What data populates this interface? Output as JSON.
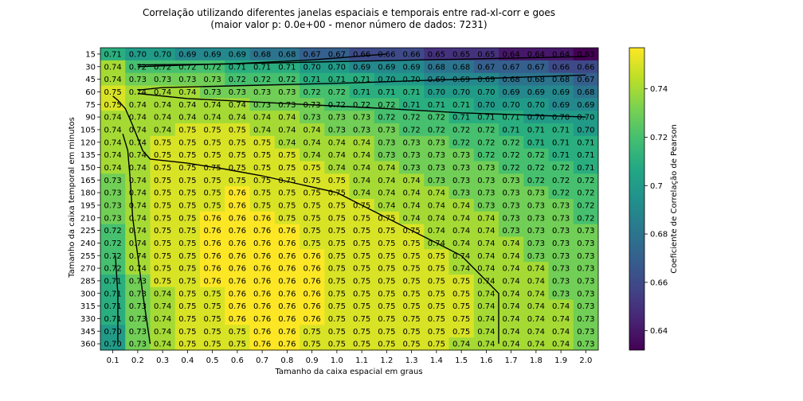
{
  "chart_data": {
    "type": "heatmap",
    "title": "Correlação utilizando diferentes janelas espaciais e temporais entre rad-xl-corr e goes",
    "subtitle": "(maior valor p: 0.0e+00 - menor número de dados: 7231)",
    "xlabel": "Tamanho da caixa espacial em graus",
    "ylabel": "Tamanho da caixa temporal em minutos",
    "colorbar_label": "Coeficiente de Correlação de Pearson",
    "colormap": "viridis",
    "vmin": 0.632,
    "vmax": 0.757,
    "colorbar_ticks": [
      "0.64",
      "0.66",
      "0.68",
      "0.7",
      "0.72",
      "0.74"
    ],
    "colorbar_tick_values": [
      0.64,
      0.66,
      0.68,
      0.7,
      0.72,
      0.74
    ],
    "x_ticks": [
      "0.1",
      "0.2",
      "0.3",
      "0.4",
      "0.5",
      "0.6",
      "0.7",
      "0.8",
      "0.9",
      "1.0",
      "1.1",
      "1.2",
      "1.3",
      "1.4",
      "1.5",
      "1.6",
      "1.7",
      "1.8",
      "1.9",
      "2.0"
    ],
    "y_ticks": [
      "15",
      "30",
      "45",
      "60",
      "75",
      "90",
      "105",
      "120",
      "135",
      "150",
      "165",
      "180",
      "195",
      "210",
      "225",
      "240",
      "255",
      "270",
      "285",
      "300",
      "315",
      "330",
      "345",
      "360"
    ],
    "values": [
      [
        0.71,
        0.7,
        0.7,
        0.69,
        0.69,
        0.69,
        0.68,
        0.68,
        0.67,
        0.67,
        0.66,
        0.66,
        0.66,
        0.65,
        0.65,
        0.65,
        0.64,
        0.64,
        0.64,
        0.63
      ],
      [
        0.74,
        0.72,
        0.72,
        0.72,
        0.72,
        0.71,
        0.71,
        0.71,
        0.7,
        0.7,
        0.69,
        0.69,
        0.69,
        0.68,
        0.68,
        0.67,
        0.67,
        0.67,
        0.66,
        0.66
      ],
      [
        0.74,
        0.73,
        0.73,
        0.73,
        0.73,
        0.72,
        0.72,
        0.72,
        0.71,
        0.71,
        0.71,
        0.7,
        0.7,
        0.69,
        0.69,
        0.69,
        0.68,
        0.68,
        0.68,
        0.67
      ],
      [
        0.75,
        0.74,
        0.74,
        0.74,
        0.73,
        0.73,
        0.73,
        0.73,
        0.72,
        0.72,
        0.71,
        0.71,
        0.71,
        0.7,
        0.7,
        0.7,
        0.69,
        0.69,
        0.69,
        0.68
      ],
      [
        0.75,
        0.74,
        0.74,
        0.74,
        0.74,
        0.74,
        0.73,
        0.73,
        0.73,
        0.72,
        0.72,
        0.72,
        0.71,
        0.71,
        0.71,
        0.7,
        0.7,
        0.7,
        0.69,
        0.69
      ],
      [
        0.74,
        0.74,
        0.74,
        0.74,
        0.74,
        0.74,
        0.74,
        0.74,
        0.73,
        0.73,
        0.73,
        0.72,
        0.72,
        0.72,
        0.71,
        0.71,
        0.71,
        0.7,
        0.7,
        0.7
      ],
      [
        0.74,
        0.74,
        0.74,
        0.75,
        0.75,
        0.75,
        0.74,
        0.74,
        0.74,
        0.73,
        0.73,
        0.73,
        0.72,
        0.72,
        0.72,
        0.72,
        0.71,
        0.71,
        0.71,
        0.7
      ],
      [
        0.74,
        0.74,
        0.75,
        0.75,
        0.75,
        0.75,
        0.75,
        0.74,
        0.74,
        0.74,
        0.74,
        0.73,
        0.73,
        0.73,
        0.72,
        0.72,
        0.72,
        0.71,
        0.71,
        0.71
      ],
      [
        0.74,
        0.74,
        0.75,
        0.75,
        0.75,
        0.75,
        0.75,
        0.75,
        0.74,
        0.74,
        0.74,
        0.73,
        0.73,
        0.73,
        0.73,
        0.72,
        0.72,
        0.72,
        0.71,
        0.71
      ],
      [
        0.74,
        0.74,
        0.75,
        0.75,
        0.75,
        0.75,
        0.75,
        0.75,
        0.75,
        0.74,
        0.74,
        0.74,
        0.73,
        0.73,
        0.73,
        0.73,
        0.72,
        0.72,
        0.72,
        0.71
      ],
      [
        0.73,
        0.74,
        0.75,
        0.75,
        0.75,
        0.75,
        0.75,
        0.75,
        0.75,
        0.75,
        0.74,
        0.74,
        0.74,
        0.73,
        0.73,
        0.73,
        0.73,
        0.72,
        0.72,
        0.72
      ],
      [
        0.73,
        0.74,
        0.75,
        0.75,
        0.75,
        0.76,
        0.75,
        0.75,
        0.75,
        0.75,
        0.74,
        0.74,
        0.74,
        0.74,
        0.73,
        0.73,
        0.73,
        0.73,
        0.72,
        0.72
      ],
      [
        0.73,
        0.74,
        0.75,
        0.75,
        0.75,
        0.76,
        0.75,
        0.75,
        0.75,
        0.75,
        0.75,
        0.74,
        0.74,
        0.74,
        0.74,
        0.73,
        0.73,
        0.73,
        0.73,
        0.72
      ],
      [
        0.73,
        0.74,
        0.75,
        0.75,
        0.76,
        0.76,
        0.76,
        0.75,
        0.75,
        0.75,
        0.75,
        0.75,
        0.74,
        0.74,
        0.74,
        0.74,
        0.73,
        0.73,
        0.73,
        0.72
      ],
      [
        0.72,
        0.74,
        0.75,
        0.75,
        0.76,
        0.76,
        0.76,
        0.76,
        0.75,
        0.75,
        0.75,
        0.75,
        0.75,
        0.74,
        0.74,
        0.74,
        0.73,
        0.73,
        0.73,
        0.73
      ],
      [
        0.72,
        0.74,
        0.75,
        0.75,
        0.76,
        0.76,
        0.76,
        0.76,
        0.75,
        0.75,
        0.75,
        0.75,
        0.75,
        0.74,
        0.74,
        0.74,
        0.74,
        0.73,
        0.73,
        0.73
      ],
      [
        0.72,
        0.74,
        0.75,
        0.75,
        0.76,
        0.76,
        0.76,
        0.76,
        0.76,
        0.75,
        0.75,
        0.75,
        0.75,
        0.75,
        0.74,
        0.74,
        0.74,
        0.73,
        0.73,
        0.73
      ],
      [
        0.72,
        0.74,
        0.75,
        0.75,
        0.76,
        0.76,
        0.76,
        0.76,
        0.76,
        0.75,
        0.75,
        0.75,
        0.75,
        0.75,
        0.74,
        0.74,
        0.74,
        0.74,
        0.73,
        0.73
      ],
      [
        0.71,
        0.73,
        0.75,
        0.75,
        0.76,
        0.76,
        0.76,
        0.76,
        0.76,
        0.75,
        0.75,
        0.75,
        0.75,
        0.75,
        0.75,
        0.74,
        0.74,
        0.74,
        0.73,
        0.73
      ],
      [
        0.71,
        0.73,
        0.74,
        0.75,
        0.75,
        0.76,
        0.76,
        0.76,
        0.76,
        0.75,
        0.75,
        0.75,
        0.75,
        0.75,
        0.75,
        0.74,
        0.74,
        0.74,
        0.73,
        0.73
      ],
      [
        0.71,
        0.73,
        0.74,
        0.75,
        0.75,
        0.76,
        0.76,
        0.76,
        0.76,
        0.75,
        0.75,
        0.75,
        0.75,
        0.75,
        0.75,
        0.74,
        0.74,
        0.74,
        0.74,
        0.73
      ],
      [
        0.71,
        0.73,
        0.74,
        0.75,
        0.75,
        0.76,
        0.76,
        0.76,
        0.76,
        0.75,
        0.75,
        0.75,
        0.75,
        0.75,
        0.75,
        0.74,
        0.74,
        0.74,
        0.74,
        0.73
      ],
      [
        0.7,
        0.73,
        0.74,
        0.75,
        0.75,
        0.75,
        0.76,
        0.76,
        0.75,
        0.75,
        0.75,
        0.75,
        0.75,
        0.75,
        0.75,
        0.74,
        0.74,
        0.74,
        0.74,
        0.73
      ],
      [
        0.7,
        0.73,
        0.74,
        0.75,
        0.75,
        0.75,
        0.76,
        0.76,
        0.75,
        0.75,
        0.75,
        0.75,
        0.75,
        0.75,
        0.74,
        0.74,
        0.74,
        0.74,
        0.74,
        0.73
      ]
    ],
    "contours": [
      [
        [
          1.2,
          15
        ],
        [
          0.9,
          22
        ],
        [
          0.55,
          27
        ],
        [
          0.2,
          28
        ]
      ],
      [
        [
          2.0,
          18
        ],
        [
          1.5,
          21
        ],
        [
          1.0,
          24
        ],
        [
          0.5,
          27
        ],
        [
          0.2,
          30
        ]
      ],
      [
        [
          2.0,
          40
        ],
        [
          1.6,
          44
        ],
        [
          1.1,
          49
        ],
        [
          0.7,
          52
        ],
        [
          0.3,
          55
        ],
        [
          0.2,
          58
        ]
      ],
      [
        [
          2.0,
          90
        ],
        [
          1.8,
          88
        ],
        [
          1.5,
          85
        ],
        [
          1.2,
          80
        ],
        [
          0.8,
          74
        ],
        [
          0.4,
          68
        ],
        [
          0.2,
          62
        ]
      ],
      [
        [
          1.65,
          360
        ],
        [
          1.65,
          300
        ],
        [
          1.6,
          285
        ],
        [
          1.55,
          270
        ],
        [
          1.5,
          255
        ],
        [
          1.4,
          240
        ],
        [
          1.3,
          225
        ],
        [
          1.2,
          210
        ],
        [
          1.1,
          195
        ],
        [
          1.0,
          180
        ],
        [
          0.85,
          170
        ],
        [
          0.7,
          160
        ],
        [
          0.55,
          152
        ],
        [
          0.4,
          145
        ],
        [
          0.25,
          140
        ],
        [
          0.22,
          130
        ],
        [
          0.2,
          115
        ],
        [
          0.18,
          100
        ],
        [
          0.15,
          80
        ],
        [
          0.12,
          70
        ],
        [
          0.1,
          65
        ]
      ],
      [
        [
          0.25,
          360
        ],
        [
          0.22,
          300
        ],
        [
          0.2,
          255
        ],
        [
          0.18,
          210
        ],
        [
          0.17,
          165
        ],
        [
          0.16,
          130
        ],
        [
          0.14,
          110
        ]
      ],
      [
        [
          0.12,
          360
        ],
        [
          0.12,
          300
        ],
        [
          0.11,
          255
        ]
      ]
    ]
  }
}
